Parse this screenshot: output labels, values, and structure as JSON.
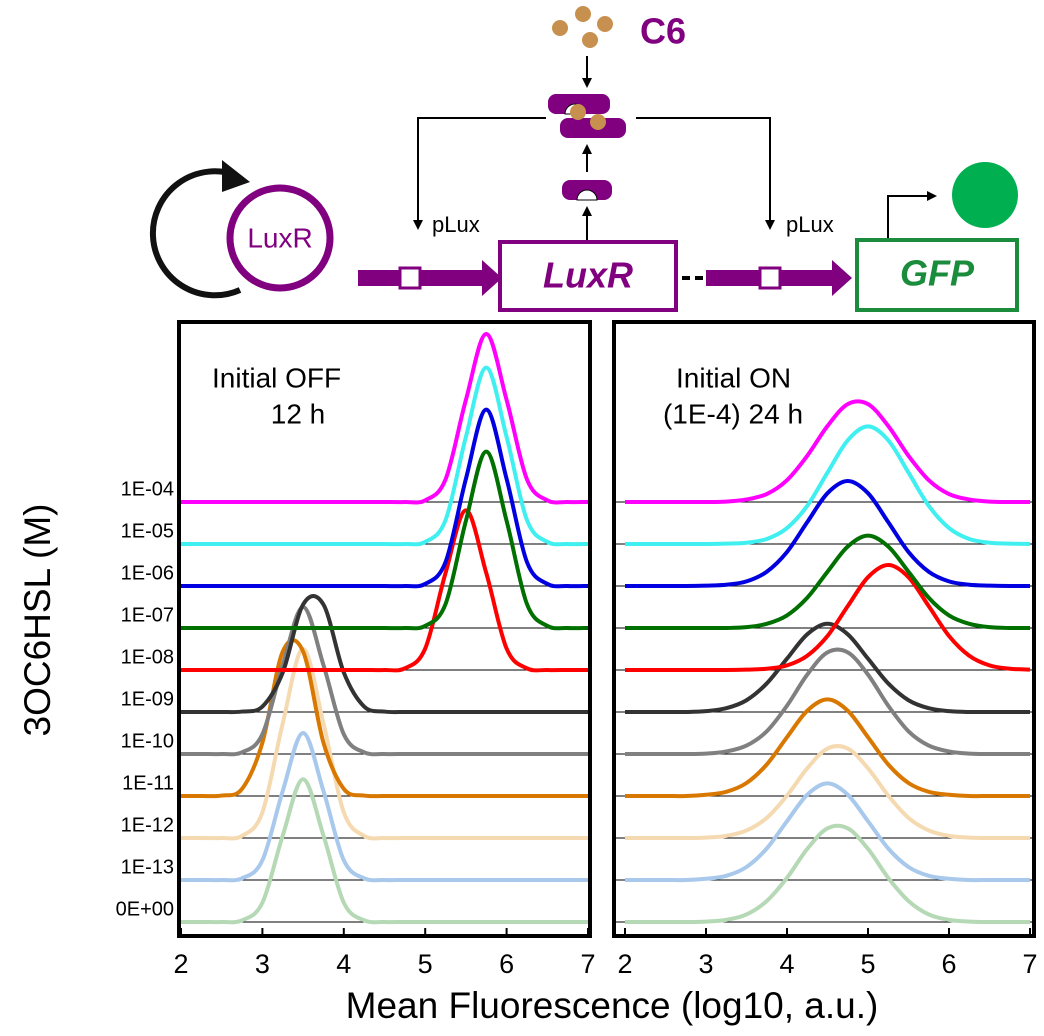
{
  "diagram": {
    "inducer": "C6",
    "plasmid": "LuxR",
    "promoter_1": "pLux",
    "gene_1": "LuxR",
    "promoter_2": "pLux",
    "gene_2": "GFP"
  },
  "chart_data": [
    {
      "type": "ridgeline",
      "title": [
        "Initial OFF",
        "12 h"
      ],
      "ylabel": "3OC6HSL (M)",
      "xlabel": "Mean Fluorescence (log10, a.u.)",
      "categories": [
        "1E-04",
        "1E-05",
        "1E-06",
        "1E-07",
        "1E-08",
        "1E-09",
        "1E-10",
        "1E-11",
        "1E-12",
        "1E-13",
        "0E+00"
      ],
      "xlim": [
        2,
        7
      ],
      "xticks": [
        2,
        3,
        4,
        5,
        6,
        7
      ],
      "x": [
        2,
        2.25,
        2.5,
        2.75,
        3,
        3.25,
        3.5,
        3.75,
        4,
        4.25,
        4.5,
        4.75,
        5,
        5.25,
        5.5,
        5.75,
        6,
        6.25,
        6.5,
        6.75,
        7
      ],
      "series": [
        {
          "color": "#ff00ff",
          "values": [
            0,
            0,
            0,
            0,
            0,
            0,
            0,
            0,
            0,
            0,
            0,
            0,
            0.04,
            0.54,
            2.43,
            4,
            2.43,
            0.54,
            0.04,
            0,
            0
          ]
        },
        {
          "color": "#40f0f0",
          "values": [
            0,
            0,
            0,
            0,
            0,
            0,
            0,
            0,
            0,
            0,
            0,
            0,
            0.05,
            0.57,
            2.55,
            4.2,
            2.55,
            0.57,
            0.05,
            0,
            0
          ]
        },
        {
          "color": "#0000e0",
          "values": [
            0,
            0,
            0,
            0,
            0,
            0,
            0,
            0,
            0,
            0,
            0,
            0,
            0.05,
            0.57,
            2.55,
            4.2,
            2.55,
            0.57,
            0.05,
            0,
            0
          ]
        },
        {
          "color": "#007000",
          "values": [
            0,
            0,
            0,
            0,
            0,
            0,
            0,
            0,
            0,
            0,
            0,
            0,
            0.05,
            0.57,
            2.55,
            4.2,
            2.55,
            0.57,
            0.05,
            0,
            0
          ]
        },
        {
          "color": "#ff0000",
          "values": [
            0,
            0,
            0,
            0,
            0,
            0,
            0,
            0,
            0,
            0,
            0,
            0.04,
            0.51,
            2.31,
            3.8,
            2.31,
            0.51,
            0.04,
            0,
            0,
            0
          ]
        },
        {
          "color": "#333333",
          "values": [
            0,
            0,
            0,
            0.01,
            0.13,
            0.94,
            2.56,
            2.56,
            0.94,
            0.13,
            0.01,
            0,
            0,
            0,
            0,
            0,
            0,
            0,
            0,
            0,
            0
          ]
        },
        {
          "color": "#808080",
          "values": [
            0,
            0,
            0,
            0.04,
            0.47,
            2.12,
            3.5,
            2.12,
            0.47,
            0.04,
            0,
            0,
            0,
            0,
            0,
            0,
            0,
            0,
            0,
            0,
            0
          ]
        },
        {
          "color": "#d97800",
          "values": [
            0,
            0,
            0.01,
            0.17,
            1.27,
            3.44,
            3.44,
            1.27,
            0.17,
            0.01,
            0,
            0,
            0,
            0,
            0,
            0,
            0,
            0,
            0,
            0,
            0
          ]
        },
        {
          "color": "#f5d9b0",
          "values": [
            0,
            0,
            0,
            0.05,
            0.61,
            2.73,
            4.5,
            2.73,
            0.61,
            0.05,
            0,
            0,
            0,
            0,
            0,
            0,
            0,
            0,
            0,
            0,
            0
          ]
        },
        {
          "color": "#a8c8ec",
          "values": [
            0,
            0,
            0,
            0.04,
            0.47,
            2.12,
            3.5,
            2.12,
            0.47,
            0.04,
            0,
            0,
            0,
            0,
            0,
            0,
            0,
            0,
            0,
            0,
            0
          ]
        },
        {
          "color": "#b5d8b5",
          "values": [
            0,
            0,
            0,
            0.04,
            0.46,
            2.06,
            3.4,
            2.06,
            0.46,
            0.04,
            0,
            0,
            0,
            0,
            0,
            0,
            0,
            0,
            0,
            0,
            0
          ]
        }
      ]
    },
    {
      "type": "ridgeline",
      "title": [
        "Initial ON",
        "(1E-4) 24 h"
      ],
      "xlim": [
        2,
        7
      ],
      "xticks": [
        2,
        3,
        4,
        5,
        6,
        7
      ],
      "x": [
        2,
        2.25,
        2.5,
        2.75,
        3,
        3.25,
        3.5,
        3.75,
        4,
        4.25,
        4.5,
        4.75,
        5,
        5.25,
        5.5,
        5.75,
        6,
        6.25,
        6.5,
        6.75,
        7
      ],
      "series": [
        {
          "color": "#ff00ff",
          "values": [
            0,
            0,
            0,
            0,
            0,
            0.01,
            0.06,
            0.19,
            0.52,
            1.1,
            1.81,
            2.33,
            2.33,
            1.81,
            1.1,
            0.52,
            0.19,
            0.06,
            0.01,
            0,
            0
          ]
        },
        {
          "color": "#40f0f0",
          "values": [
            0,
            0,
            0,
            0,
            0,
            0.01,
            0.03,
            0.12,
            0.38,
            0.91,
            1.7,
            2.47,
            2.8,
            2.47,
            1.7,
            0.91,
            0.38,
            0.12,
            0.03,
            0.01,
            0
          ]
        },
        {
          "color": "#0000e0",
          "values": [
            0,
            0,
            0,
            0,
            0.01,
            0.03,
            0.11,
            0.34,
            0.81,
            1.52,
            2.21,
            2.5,
            2.21,
            1.52,
            0.81,
            0.34,
            0.11,
            0.03,
            0.01,
            0,
            0
          ]
        },
        {
          "color": "#007000",
          "values": [
            0,
            0,
            0,
            0,
            0,
            0,
            0.02,
            0.1,
            0.3,
            0.72,
            1.34,
            1.94,
            2.2,
            1.94,
            1.34,
            0.72,
            0.3,
            0.1,
            0.02,
            0,
            0
          ]
        },
        {
          "color": "#ff0000",
          "values": [
            0,
            0,
            0,
            0,
            0,
            0,
            0.01,
            0.03,
            0.11,
            0.34,
            0.81,
            1.52,
            2.21,
            2.5,
            2.21,
            1.52,
            0.81,
            0.34,
            0.11,
            0.03,
            0.01
          ]
        },
        {
          "color": "#333333",
          "values": [
            0,
            0,
            0,
            0,
            0.02,
            0.09,
            0.28,
            0.68,
            1.27,
            1.85,
            2.1,
            1.85,
            1.27,
            0.68,
            0.28,
            0.09,
            0.02,
            0,
            0,
            0,
            0
          ]
        },
        {
          "color": "#808080",
          "values": [
            0,
            0,
            0,
            0,
            0.01,
            0.06,
            0.2,
            0.54,
            1.15,
            1.89,
            2.42,
            2.42,
            1.89,
            1.15,
            0.54,
            0.2,
            0.06,
            0.01,
            0,
            0,
            0
          ]
        },
        {
          "color": "#d97800",
          "values": [
            0,
            0,
            0,
            0,
            0.03,
            0.1,
            0.31,
            0.75,
            1.4,
            2.03,
            2.3,
            2.03,
            1.4,
            0.75,
            0.31,
            0.1,
            0.03,
            0,
            0,
            0,
            0
          ]
        },
        {
          "color": "#f5d9b0",
          "values": [
            0,
            0,
            0,
            0,
            0.01,
            0.05,
            0.18,
            0.48,
            1.01,
            1.66,
            2.13,
            2.13,
            1.66,
            1.01,
            0.48,
            0.18,
            0.05,
            0.01,
            0,
            0,
            0
          ]
        },
        {
          "color": "#a8c8ec",
          "values": [
            0,
            0,
            0,
            0,
            0.03,
            0.1,
            0.31,
            0.75,
            1.4,
            2.03,
            2.3,
            2.03,
            1.4,
            0.75,
            0.31,
            0.1,
            0.03,
            0,
            0,
            0,
            0
          ]
        },
        {
          "color": "#b5d8b5",
          "values": [
            0,
            0,
            0,
            0,
            0.01,
            0.05,
            0.18,
            0.5,
            1.05,
            1.74,
            2.23,
            2.23,
            1.74,
            1.05,
            0.5,
            0.18,
            0.05,
            0.01,
            0,
            0,
            0
          ]
        }
      ]
    }
  ]
}
